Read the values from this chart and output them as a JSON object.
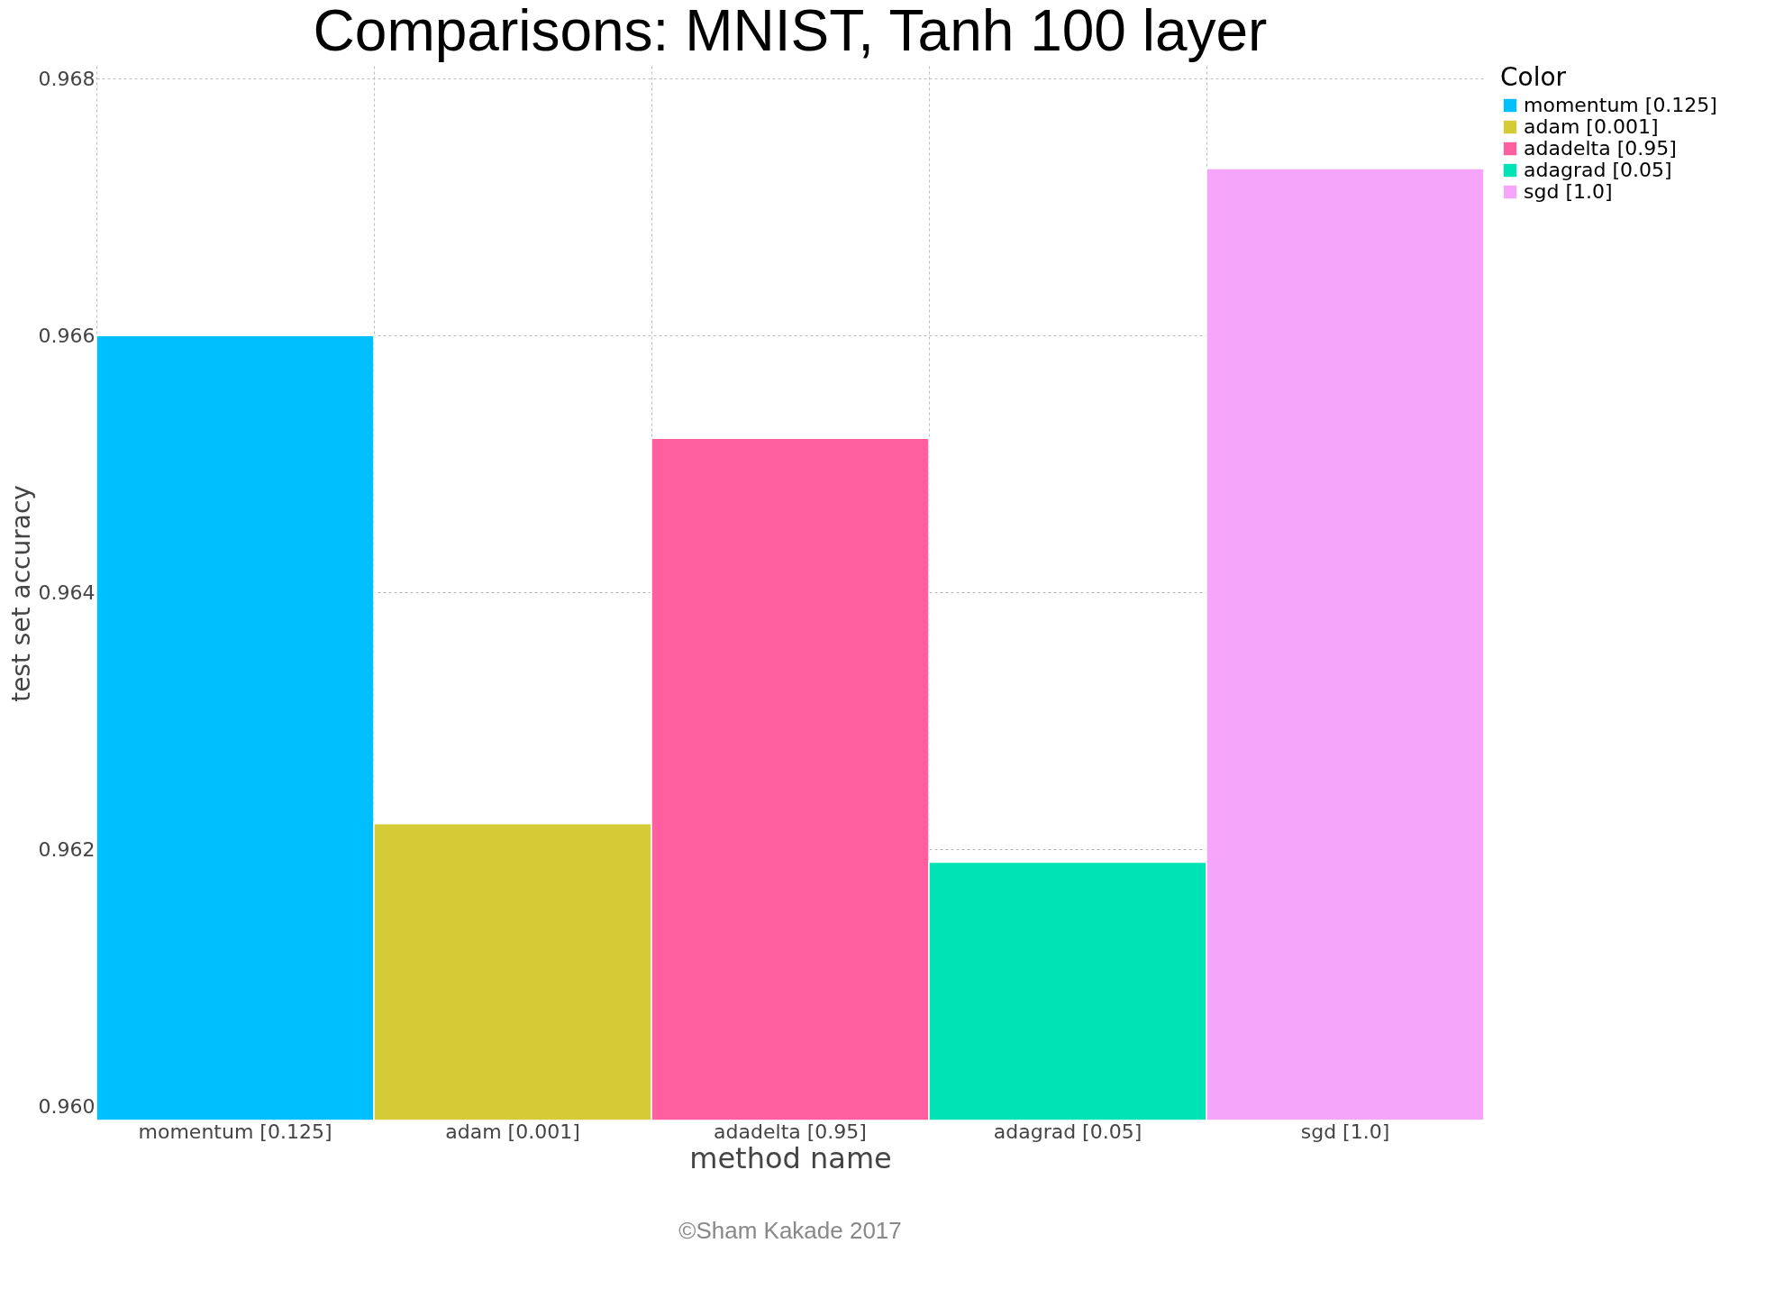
{
  "chart_data": {
    "type": "bar",
    "title": "Comparisons: MNIST, Tanh 100 layer",
    "xlabel": "method name",
    "ylabel": "test set accuracy",
    "legend_title": "Color",
    "categories": [
      "momentum [0.125]",
      "adam [0.001]",
      "adadelta [0.95]",
      "adagrad [0.05]",
      "sgd [1.0]"
    ],
    "series": [
      {
        "name": "momentum [0.125]",
        "color": "#00bfff",
        "values": [
          0.966,
          null,
          null,
          null,
          null
        ]
      },
      {
        "name": "adam [0.001]",
        "color": "#d4cb37",
        "values": [
          null,
          0.9622,
          null,
          null,
          null
        ]
      },
      {
        "name": "adadelta [0.95]",
        "color": "#ff5f9e",
        "values": [
          null,
          null,
          0.9652,
          null,
          null
        ]
      },
      {
        "name": "adagrad [0.05]",
        "color": "#00e3b4",
        "values": [
          null,
          null,
          null,
          0.9619,
          null
        ]
      },
      {
        "name": "sgd [1.0]",
        "color": "#f5a6fb",
        "values": [
          null,
          null,
          null,
          null,
          0.9673
        ]
      }
    ],
    "ylim": [
      0.95989,
      0.9681
    ],
    "yticks": [
      {
        "value": 0.96,
        "label": "0.960"
      },
      0.962,
      0.964,
      0.966,
      0.968
    ],
    "grid": true,
    "legend": "right",
    "annotations": [
      "©Sham Kakade 2017"
    ]
  }
}
